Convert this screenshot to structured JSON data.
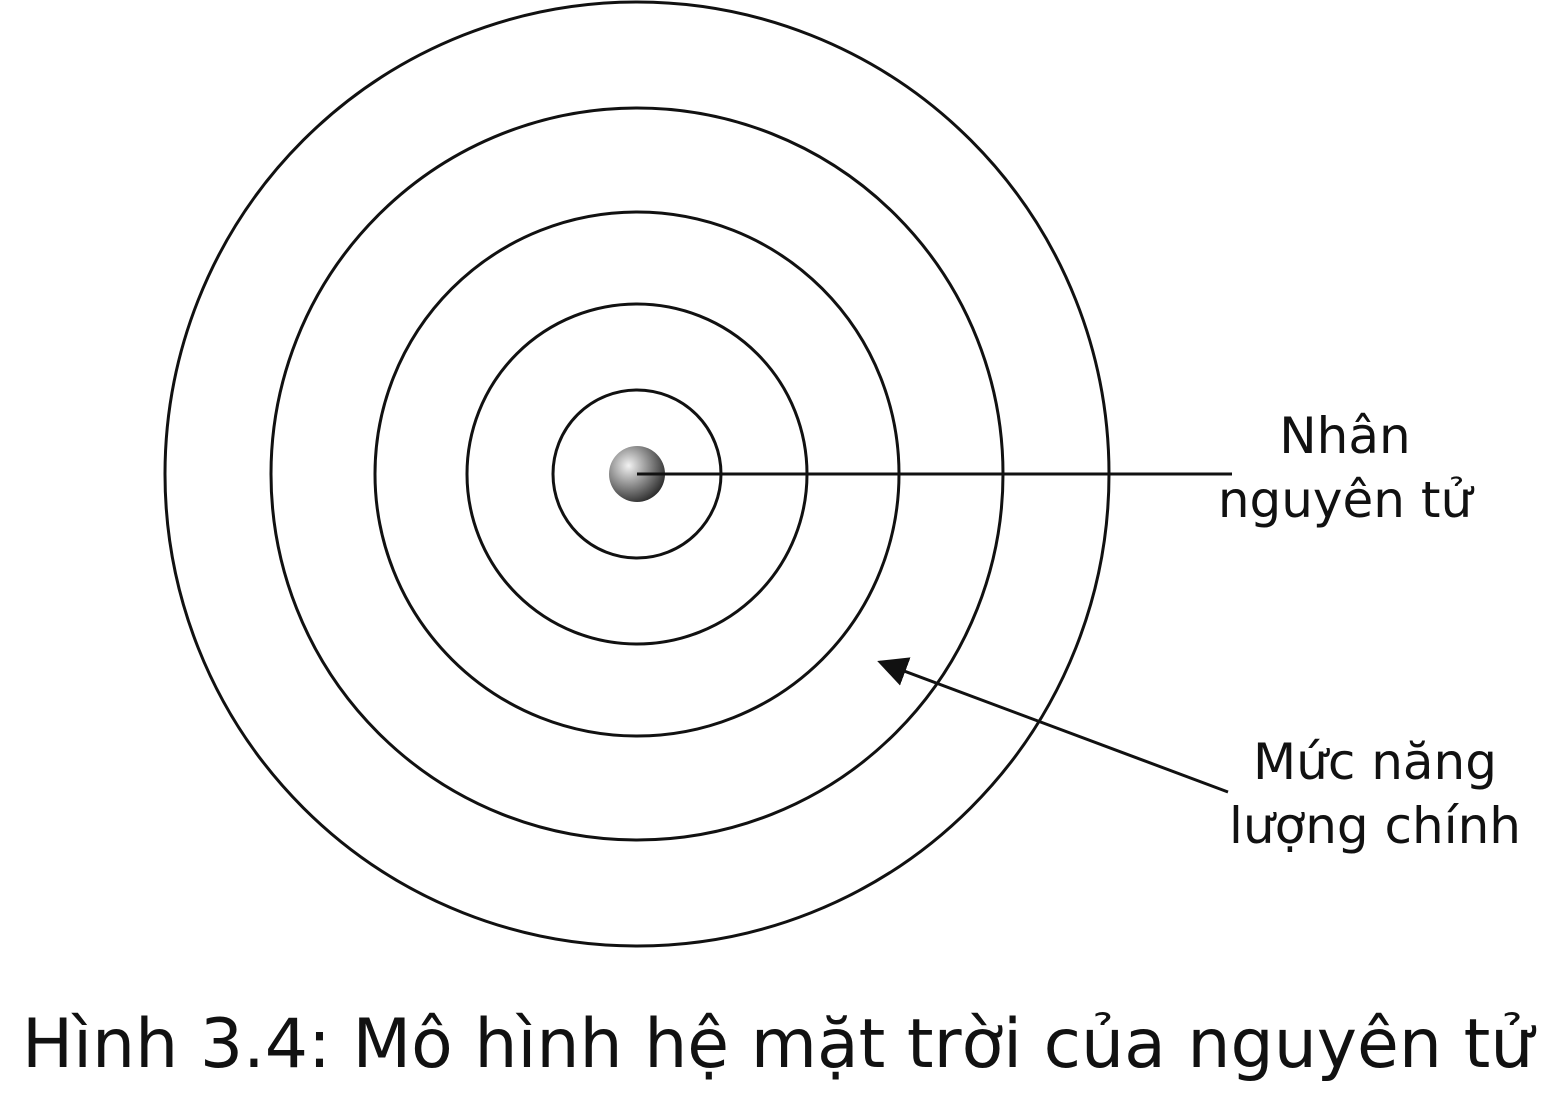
{
  "diagram": {
    "shell_count": 5,
    "labels": {
      "nucleus_line1": "Nhân",
      "nucleus_line2": "nguyên tử",
      "energy_line1": "Mức năng",
      "energy_line2": "lượng chính"
    },
    "caption": "Hình 3.4: Mô hình hệ mặt trời của nguyên tử",
    "colors": {
      "stroke": "#111111",
      "nucleus_light": "#e6e6e6",
      "nucleus_dark": "#3a3a3a",
      "background": "#ffffff"
    }
  }
}
